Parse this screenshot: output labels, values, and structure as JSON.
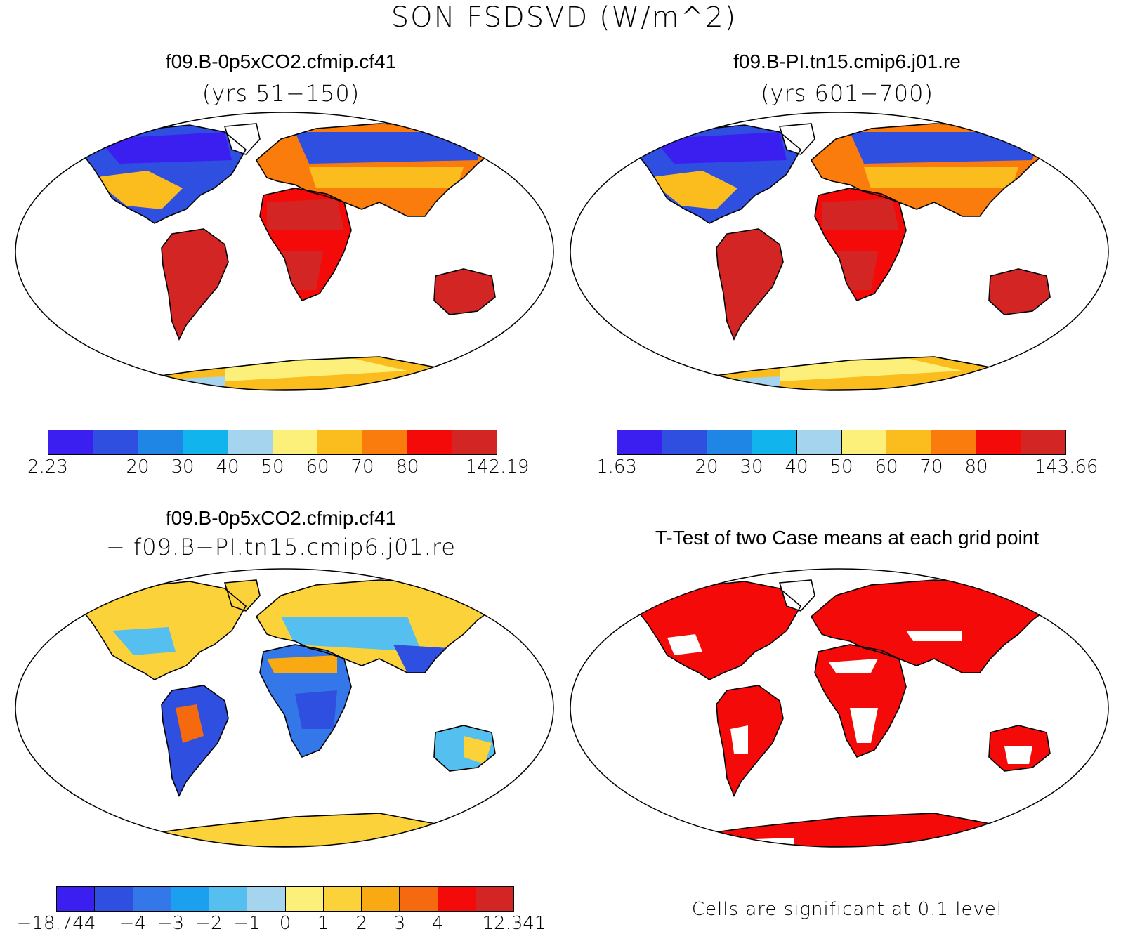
{
  "figure": {
    "title": "SON FSDSVD (W/m^2)",
    "footnote": "Cells are significant at 0.1 level"
  },
  "panels": [
    {
      "id": "case1",
      "title": "f09.B-0p5xCO2.cfmip.cf41",
      "subtitle": "(yrs 51−150)",
      "colorbar": {
        "colors": [
          "#3b1ef0",
          "#2e4fe0",
          "#1f86e6",
          "#12b4ee",
          "#a4d4ee",
          "#fdf07a",
          "#fbbd1e",
          "#f97c0c",
          "#f50a0a",
          "#d42525"
        ],
        "labels": [
          "2.23",
          "20",
          "30",
          "40",
          "50",
          "60",
          "70",
          "80",
          "142.19"
        ]
      }
    },
    {
      "id": "case2",
      "title": "f09.B-PI.tn15.cmip6.j01.re",
      "subtitle": "(yrs 601−700)",
      "colorbar": {
        "colors": [
          "#3b1ef0",
          "#2e4fe0",
          "#1f86e6",
          "#12b4ee",
          "#a4d4ee",
          "#fdf07a",
          "#fbbd1e",
          "#f97c0c",
          "#f50a0a",
          "#d42525"
        ],
        "labels": [
          "1.63",
          "20",
          "30",
          "40",
          "50",
          "60",
          "70",
          "80",
          "143.66"
        ]
      }
    },
    {
      "id": "diff",
      "title": "f09.B-0p5xCO2.cfmip.cf41",
      "subtitle": "− f09.B−PI.tn15.cmip6.j01.re",
      "colorbar": {
        "colors": [
          "#3b1ef0",
          "#2e4fe0",
          "#3377e8",
          "#1aa0ee",
          "#55c0f0",
          "#a4d4ee",
          "#fdf07a",
          "#fbd23a",
          "#f9a912",
          "#f56a0e",
          "#f50a0a",
          "#d42525"
        ],
        "labels": [
          "−18.744",
          "−4",
          "−3",
          "−2",
          "−1",
          "0",
          "1",
          "2",
          "3",
          "4",
          "12.341"
        ]
      }
    },
    {
      "id": "ttest",
      "title": "T-Test of two Case means at each grid point"
    }
  ]
}
